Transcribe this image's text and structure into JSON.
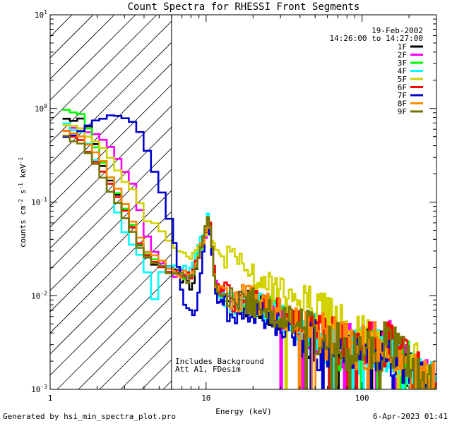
{
  "chart_data": {
    "type": "line",
    "title": "Count Spectra for RHESSI Front Segments",
    "xlabel": "Energy (keV)",
    "ylabel": {
      "base": "counts cm",
      "sup1": "-2",
      "mid1": " s",
      "sup2": "-1",
      "mid2": " keV",
      "sup3": "-1"
    },
    "xscale": "log",
    "yscale": "log",
    "xlim": [
      1.0,
      300.0
    ],
    "ylim": [
      0.001,
      10.0
    ],
    "x_ticks": [
      {
        "value": 1,
        "label": "1"
      },
      {
        "value": 10,
        "label": "10"
      },
      {
        "value": 100,
        "label": "100"
      }
    ],
    "y_ticks": [
      {
        "value": 10,
        "base": "10",
        "exp": "1"
      },
      {
        "value": 1,
        "base": "10",
        "exp": "0"
      },
      {
        "value": 0.1,
        "base": "10",
        "exp": "-1"
      },
      {
        "value": 0.01,
        "base": "10",
        "exp": "-2"
      },
      {
        "value": 0.001,
        "base": "10",
        "exp": "-3"
      }
    ],
    "hatched_region": {
      "x_min": 1.0,
      "x_max": 6.0,
      "meaning": "attenuated low-energy range"
    },
    "date": "19-Feb-2002",
    "time_range": "14:26:00 to 14:27:00",
    "annotations": [
      "Includes Background",
      "Att A1, FDesim"
    ],
    "legend_position": "top-right",
    "series": [
      {
        "name": "1F",
        "color": "#000000",
        "anchors": [
          [
            1.2,
            0.76
          ],
          [
            1.7,
            0.76
          ],
          [
            2.2,
            0.24
          ],
          [
            3.0,
            0.09
          ],
          [
            4.0,
            0.026
          ],
          [
            5.0,
            0.021
          ],
          [
            6.0,
            0.02
          ],
          [
            8.0,
            0.012
          ],
          [
            9.8,
            0.045
          ],
          [
            10.4,
            0.075
          ],
          [
            11.5,
            0.012
          ],
          [
            14.0,
            0.0085
          ],
          [
            20.0,
            0.008
          ],
          [
            30.0,
            0.006
          ],
          [
            50.0,
            0.0035
          ],
          [
            80.0,
            0.0025
          ],
          [
            150.0,
            0.0028
          ],
          [
            250.0,
            0.0012
          ],
          [
            300.0,
            0.001
          ]
        ]
      },
      {
        "name": "2F",
        "color": "#ff00ff",
        "anchors": [
          [
            1.2,
            0.6
          ],
          [
            1.6,
            0.6
          ],
          [
            2.0,
            0.5
          ],
          [
            2.5,
            0.38
          ],
          [
            3.0,
            0.22
          ],
          [
            3.5,
            0.14
          ],
          [
            4.0,
            0.048
          ],
          [
            5.0,
            0.024
          ],
          [
            6.0,
            0.018
          ],
          [
            8.0,
            0.016
          ],
          [
            9.8,
            0.04
          ],
          [
            10.4,
            0.07
          ],
          [
            11.5,
            0.013
          ],
          [
            14.0,
            0.009
          ],
          [
            20.0,
            0.0085
          ],
          [
            30.0,
            0.0062
          ],
          [
            50.0,
            0.0038
          ],
          [
            80.0,
            0.0028
          ],
          [
            150.0,
            0.003
          ],
          [
            250.0,
            0.0013
          ],
          [
            300.0,
            0.001
          ]
        ]
      },
      {
        "name": "3F",
        "color": "#00ff00",
        "anchors": [
          [
            1.2,
            1.0
          ],
          [
            1.6,
            0.85
          ],
          [
            2.2,
            0.26
          ],
          [
            3.0,
            0.09
          ],
          [
            4.0,
            0.028
          ],
          [
            5.0,
            0.022
          ],
          [
            6.0,
            0.018
          ],
          [
            8.0,
            0.015
          ],
          [
            9.8,
            0.045
          ],
          [
            10.4,
            0.08
          ],
          [
            11.5,
            0.012
          ],
          [
            14.0,
            0.009
          ],
          [
            20.0,
            0.0085
          ],
          [
            30.0,
            0.006
          ],
          [
            50.0,
            0.0035
          ],
          [
            80.0,
            0.0025
          ],
          [
            150.0,
            0.003
          ],
          [
            250.0,
            0.0012
          ],
          [
            300.0,
            0.001
          ]
        ]
      },
      {
        "name": "4F",
        "color": "#00ffff",
        "anchors": [
          [
            1.2,
            0.7
          ],
          [
            1.6,
            0.55
          ],
          [
            2.2,
            0.2
          ],
          [
            3.0,
            0.05
          ],
          [
            3.5,
            0.03
          ],
          [
            4.0,
            0.025
          ],
          [
            4.6,
            0.008
          ],
          [
            5.0,
            0.018
          ],
          [
            6.0,
            0.02
          ],
          [
            8.0,
            0.018
          ],
          [
            9.8,
            0.05
          ],
          [
            10.4,
            0.085
          ],
          [
            11.5,
            0.012
          ],
          [
            14.0,
            0.0085
          ],
          [
            20.0,
            0.0082
          ],
          [
            30.0,
            0.006
          ],
          [
            50.0,
            0.0035
          ],
          [
            80.0,
            0.0025
          ],
          [
            150.0,
            0.0028
          ],
          [
            250.0,
            0.0012
          ],
          [
            300.0,
            0.001
          ]
        ]
      },
      {
        "name": "5F",
        "color": "#d2d200",
        "anchors": [
          [
            1.2,
            0.7
          ],
          [
            1.6,
            0.6
          ],
          [
            2.2,
            0.38
          ],
          [
            2.8,
            0.2
          ],
          [
            3.5,
            0.12
          ],
          [
            4.2,
            0.065
          ],
          [
            5.0,
            0.055
          ],
          [
            6.0,
            0.038
          ],
          [
            7.5,
            0.026
          ],
          [
            9.0,
            0.03
          ],
          [
            10.5,
            0.05
          ],
          [
            11.5,
            0.03
          ],
          [
            14.0,
            0.025
          ],
          [
            20.0,
            0.016
          ],
          [
            30.0,
            0.011
          ],
          [
            50.0,
            0.007
          ],
          [
            80.0,
            0.004
          ],
          [
            150.0,
            0.003
          ],
          [
            250.0,
            0.0015
          ],
          [
            300.0,
            0.0013
          ]
        ]
      },
      {
        "name": "6F",
        "color": "#ff0000",
        "anchors": [
          [
            1.2,
            0.6
          ],
          [
            1.6,
            0.45
          ],
          [
            2.2,
            0.2
          ],
          [
            3.0,
            0.085
          ],
          [
            4.0,
            0.03
          ],
          [
            5.0,
            0.022
          ],
          [
            6.0,
            0.018
          ],
          [
            8.0,
            0.016
          ],
          [
            9.8,
            0.045
          ],
          [
            10.4,
            0.075
          ],
          [
            11.5,
            0.013
          ],
          [
            14.0,
            0.009
          ],
          [
            20.0,
            0.0085
          ],
          [
            30.0,
            0.0065
          ],
          [
            50.0,
            0.004
          ],
          [
            80.0,
            0.0028
          ],
          [
            150.0,
            0.003
          ],
          [
            250.0,
            0.0013
          ],
          [
            300.0,
            0.0011
          ]
        ]
      },
      {
        "name": "7F",
        "color": "#0000cc",
        "anchors": [
          [
            1.2,
            0.46
          ],
          [
            1.45,
            0.5
          ],
          [
            1.7,
            0.65
          ],
          [
            2.1,
            0.78
          ],
          [
            2.7,
            0.82
          ],
          [
            3.3,
            0.78
          ],
          [
            3.8,
            0.55
          ],
          [
            4.3,
            0.33
          ],
          [
            5.0,
            0.15
          ],
          [
            5.8,
            0.07
          ],
          [
            6.5,
            0.025
          ],
          [
            7.2,
            0.009
          ],
          [
            8.5,
            0.006
          ],
          [
            9.8,
            0.04
          ],
          [
            10.4,
            0.07
          ],
          [
            11.5,
            0.01
          ],
          [
            14.0,
            0.007
          ],
          [
            20.0,
            0.0068
          ],
          [
            30.0,
            0.005
          ],
          [
            50.0,
            0.003
          ],
          [
            80.0,
            0.0022
          ],
          [
            150.0,
            0.0025
          ],
          [
            250.0,
            0.0011
          ],
          [
            300.0,
            0.001
          ]
        ]
      },
      {
        "name": "8F",
        "color": "#ff8800",
        "anchors": [
          [
            1.2,
            0.6
          ],
          [
            1.6,
            0.5
          ],
          [
            2.2,
            0.26
          ],
          [
            3.0,
            0.1
          ],
          [
            4.0,
            0.032
          ],
          [
            5.0,
            0.024
          ],
          [
            6.0,
            0.019
          ],
          [
            8.0,
            0.016
          ],
          [
            9.8,
            0.045
          ],
          [
            10.4,
            0.075
          ],
          [
            11.5,
            0.013
          ],
          [
            14.0,
            0.0095
          ],
          [
            20.0,
            0.009
          ],
          [
            30.0,
            0.0065
          ],
          [
            50.0,
            0.004
          ],
          [
            80.0,
            0.0028
          ],
          [
            150.0,
            0.003
          ],
          [
            250.0,
            0.0013
          ],
          [
            300.0,
            0.0011
          ]
        ]
      },
      {
        "name": "9F",
        "color": "#777700",
        "anchors": [
          [
            1.2,
            0.52
          ],
          [
            1.6,
            0.42
          ],
          [
            2.2,
            0.18
          ],
          [
            3.0,
            0.07
          ],
          [
            4.0,
            0.028
          ],
          [
            5.0,
            0.021
          ],
          [
            6.0,
            0.017
          ],
          [
            8.0,
            0.015
          ],
          [
            9.8,
            0.045
          ],
          [
            10.4,
            0.075
          ],
          [
            11.5,
            0.012
          ],
          [
            14.0,
            0.009
          ],
          [
            20.0,
            0.0085
          ],
          [
            30.0,
            0.006
          ],
          [
            50.0,
            0.0038
          ],
          [
            80.0,
            0.0027
          ],
          [
            150.0,
            0.0029
          ],
          [
            250.0,
            0.0012
          ],
          [
            300.0,
            0.001
          ]
        ]
      }
    ]
  },
  "footer": {
    "generated_by": "Generated by hsi_min_spectra_plot.pro",
    "timestamp": "6-Apr-2023 01:41"
  }
}
